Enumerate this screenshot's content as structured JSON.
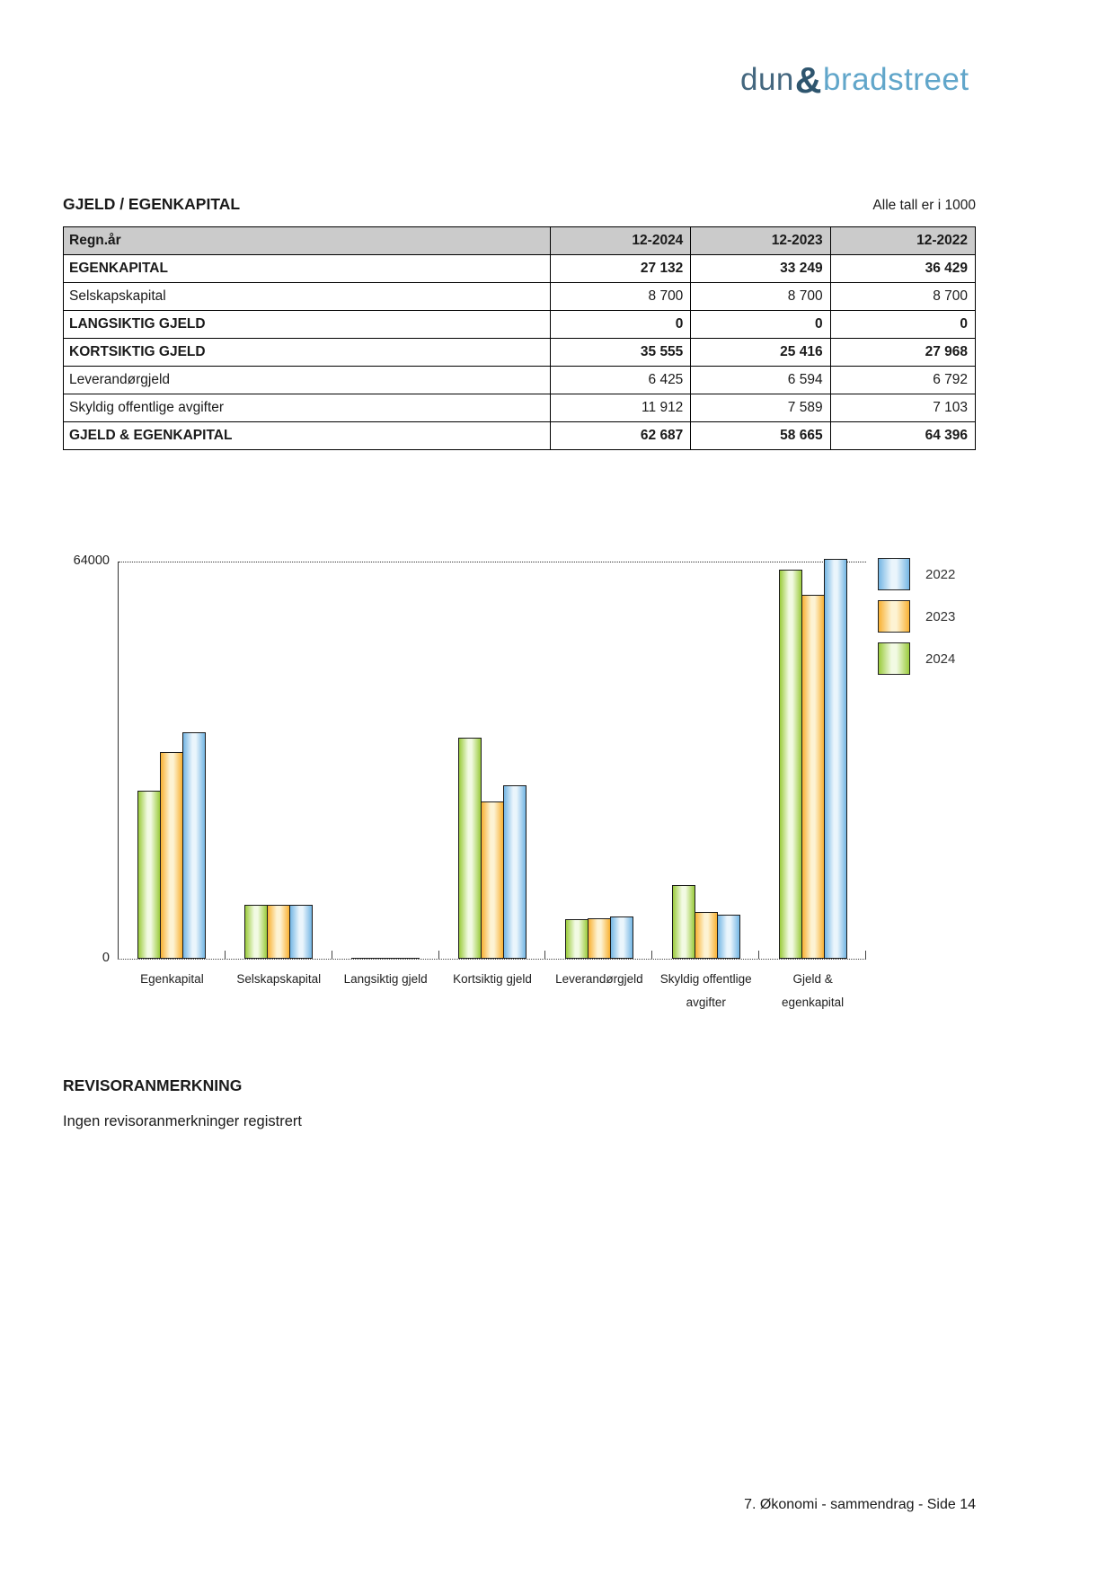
{
  "logo": {
    "part1": "dun",
    "amp": "&",
    "part2": "bradstreet",
    "color_dark": "#44677f",
    "color_amp": "#2e556e",
    "color_light": "#61a6ca"
  },
  "section": {
    "title": "GJELD / EGENKAPITAL",
    "note": "Alle tall er i 1000"
  },
  "table": {
    "columns": [
      "Regn.år",
      "12-2024",
      "12-2023",
      "12-2022"
    ],
    "header_bg": "#cbcbcb",
    "rows": [
      {
        "label": "EGENKAPITAL",
        "bold": true,
        "values": [
          "27 132",
          "33 249",
          "36 429"
        ]
      },
      {
        "label": "Selskapskapital",
        "bold": false,
        "values": [
          "8 700",
          "8 700",
          "8 700"
        ]
      },
      {
        "label": "LANGSIKTIG GJELD",
        "bold": true,
        "values": [
          "0",
          "0",
          "0"
        ]
      },
      {
        "label": "KORTSIKTIG GJELD",
        "bold": true,
        "values": [
          "35 555",
          "25 416",
          "27 968"
        ]
      },
      {
        "label": "Leverandørgjeld",
        "bold": false,
        "values": [
          "6 425",
          "6 594",
          "6 792"
        ]
      },
      {
        "label": "Skyldig offentlige avgifter",
        "bold": false,
        "values": [
          "11 912",
          "7 589",
          "7 103"
        ]
      },
      {
        "label": "GJELD & EGENKAPITAL",
        "bold": true,
        "values": [
          "62 687",
          "58 665",
          "64 396"
        ]
      }
    ]
  },
  "chart_data": {
    "type": "bar",
    "title": "",
    "xlabel": "",
    "ylabel": "",
    "ylim": [
      0,
      64000
    ],
    "y_max_label": "64000",
    "y_min_label": "0",
    "grid": "top-dotted-line-only",
    "legend_position": "right",
    "legend_order": [
      "2022",
      "2023",
      "2024"
    ],
    "categories": [
      [
        "Egenkapital"
      ],
      [
        "Selskapskapital"
      ],
      [
        "Langsiktig gjeld"
      ],
      [
        "Kortsiktig gjeld"
      ],
      [
        "Leverandørgjeld"
      ],
      [
        "Skyldig offentlige",
        "avgifter"
      ],
      [
        "Gjeld &",
        "egenkapital"
      ]
    ],
    "series": [
      {
        "name": "2024",
        "color_edge": "#9bcb3c",
        "color_center": "#f2fae3",
        "values": [
          27132,
          8700,
          0,
          35555,
          6425,
          11912,
          62687
        ]
      },
      {
        "name": "2023",
        "color_edge": "#f8b133",
        "color_center": "#fdf3d3",
        "values": [
          33249,
          8700,
          0,
          25416,
          6594,
          7589,
          58665
        ]
      },
      {
        "name": "2022",
        "color_edge": "#74b6e4",
        "color_center": "#eaf5fc",
        "values": [
          36429,
          8700,
          0,
          27968,
          6792,
          7103,
          64396
        ]
      }
    ]
  },
  "revisor": {
    "heading": "REVISORANMERKNING",
    "text": "Ingen revisoranmerkninger registrert"
  },
  "footer": {
    "text": "7. Økonomi - sammendrag - Side 14"
  }
}
